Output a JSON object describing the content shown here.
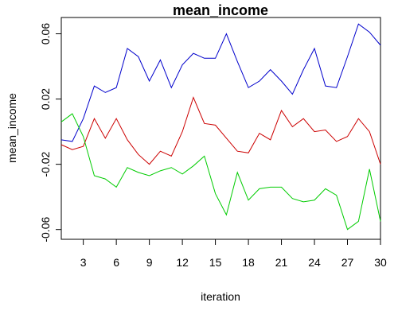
{
  "chart_data": {
    "type": "line",
    "title": "mean_income",
    "xlabel": "iteration",
    "ylabel": "mean_income",
    "xlim": [
      1,
      30
    ],
    "ylim": [
      -0.066,
      0.07
    ],
    "grid": false,
    "legend": "none",
    "x": [
      1,
      2,
      3,
      4,
      5,
      6,
      7,
      8,
      9,
      10,
      11,
      12,
      13,
      14,
      15,
      16,
      17,
      18,
      19,
      20,
      21,
      22,
      23,
      24,
      25,
      26,
      27,
      28,
      29,
      30
    ],
    "x_ticks": [
      3,
      6,
      9,
      12,
      15,
      18,
      21,
      24,
      27,
      30
    ],
    "y_ticks": [
      0.06,
      0.02,
      -0.02,
      -0.06
    ],
    "x_tick_labels": [
      "3",
      "6",
      "9",
      "12",
      "15",
      "18",
      "21",
      "24",
      "27",
      "30"
    ],
    "y_tick_labels": [
      "0.06",
      "0.02",
      "-0.02",
      "-0.06"
    ],
    "series": [
      {
        "color": "#0000cc",
        "values": [
          -0.005,
          -0.006,
          0.008,
          0.028,
          0.024,
          0.027,
          0.051,
          0.046,
          0.031,
          0.044,
          0.027,
          0.041,
          0.048,
          0.045,
          0.045,
          0.06,
          0.043,
          0.027,
          0.031,
          0.038,
          0.031,
          0.023,
          0.038,
          0.051,
          0.028,
          0.027,
          0.046,
          0.066,
          0.061,
          0.053
        ]
      },
      {
        "color": "#cc0000",
        "values": [
          -0.008,
          -0.011,
          -0.009,
          0.008,
          -0.004,
          0.008,
          -0.005,
          -0.014,
          -0.02,
          -0.012,
          -0.015,
          0.0,
          0.021,
          0.005,
          0.004,
          -0.004,
          -0.012,
          -0.013,
          -0.001,
          -0.005,
          0.013,
          0.003,
          0.008,
          0.0,
          0.001,
          -0.006,
          -0.003,
          0.008,
          0.0,
          -0.02
        ]
      },
      {
        "color": "#00cc00",
        "values": [
          0.006,
          0.011,
          -0.003,
          -0.027,
          -0.029,
          -0.034,
          -0.022,
          -0.025,
          -0.027,
          -0.024,
          -0.022,
          -0.026,
          -0.021,
          -0.015,
          -0.038,
          -0.051,
          -0.025,
          -0.042,
          -0.035,
          -0.034,
          -0.034,
          -0.041,
          -0.043,
          -0.042,
          -0.035,
          -0.039,
          -0.06,
          -0.055,
          -0.023,
          -0.055
        ]
      }
    ]
  }
}
